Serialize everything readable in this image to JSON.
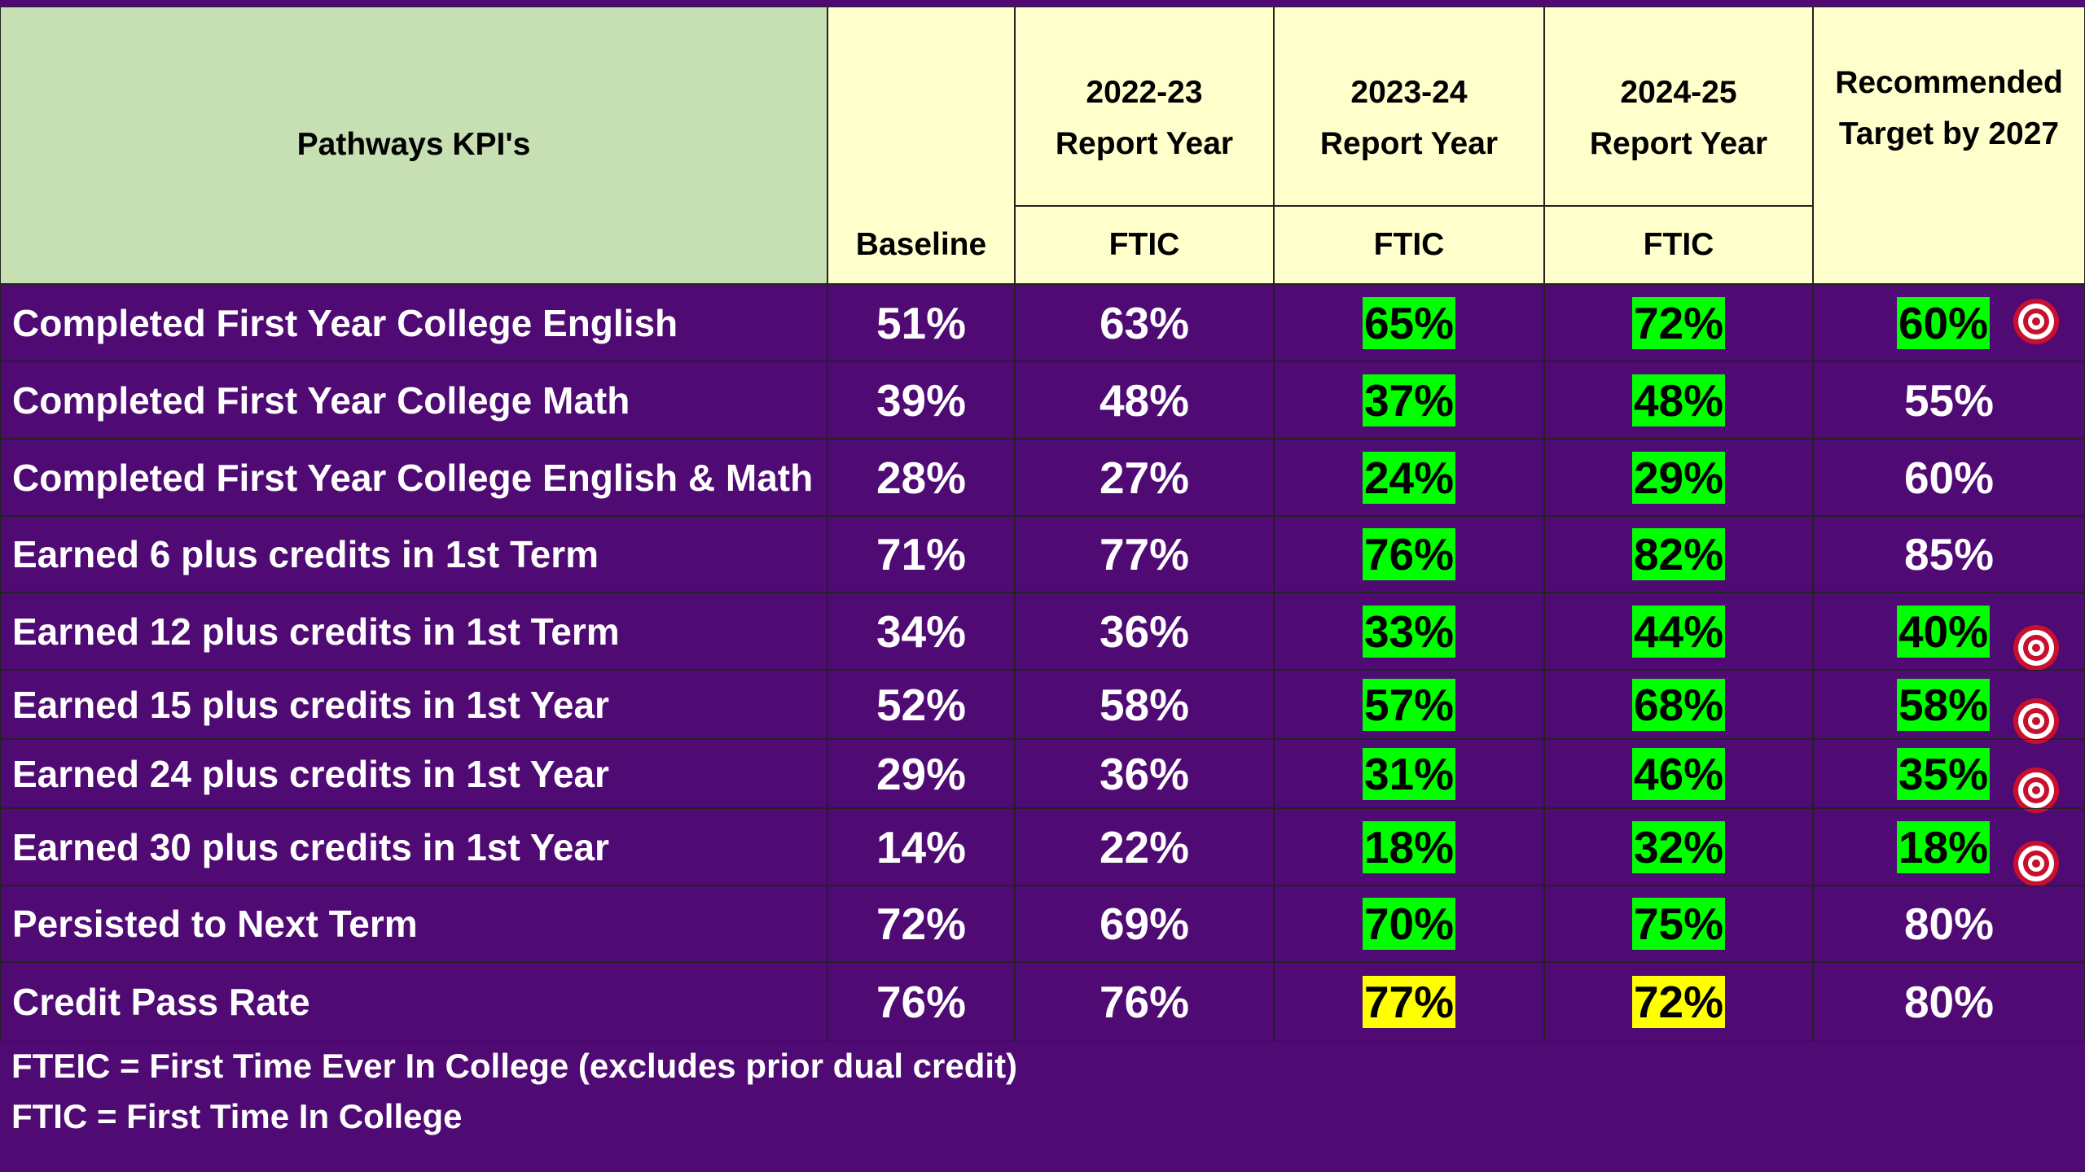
{
  "header": {
    "kpi": "Pathways KPI's",
    "baseline": "Baseline",
    "years": [
      {
        "year": "2022-23",
        "label": "Report Year",
        "sub": "FTIC"
      },
      {
        "year": "2023-24",
        "label": "Report Year",
        "sub": "FTIC"
      },
      {
        "year": "2024-25",
        "label": "Report Year",
        "sub": "FTIC"
      }
    ],
    "target": "Recommended Target by 2027"
  },
  "rows": [
    {
      "label": "Completed First Year College English",
      "values": [
        "51%",
        "63%",
        "65%",
        "72%",
        "60%"
      ],
      "highlight": [
        null,
        null,
        "#00ff00",
        "#00ff00",
        "#00ff00"
      ],
      "target": true
    },
    {
      "label": "Completed First Year College Math",
      "values": [
        "39%",
        "48%",
        "37%",
        "48%",
        "55%"
      ],
      "highlight": [
        null,
        null,
        "#00ff00",
        "#00ff00",
        null
      ],
      "target": false
    },
    {
      "label": "Completed First Year College English & Math",
      "values": [
        "28%",
        "27%",
        "24%",
        "29%",
        "60%"
      ],
      "highlight": [
        null,
        null,
        "#00ff00",
        "#00ff00",
        null
      ],
      "target": false
    },
    {
      "label": "Earned 6 plus credits in 1st Term",
      "values": [
        "71%",
        "77%",
        "76%",
        "82%",
        "85%"
      ],
      "highlight": [
        null,
        null,
        "#00ff00",
        "#00ff00",
        null
      ],
      "target": false
    },
    {
      "label": "Earned 12 plus credits in 1st Term",
      "values": [
        "34%",
        "36%",
        "33%",
        "44%",
        "40%"
      ],
      "highlight": [
        null,
        null,
        "#00ff00",
        "#00ff00",
        "#00ff00"
      ],
      "target": true
    },
    {
      "label": "Earned 15 plus credits in 1st Year",
      "values": [
        "52%",
        "58%",
        "57%",
        "68%",
        "58%"
      ],
      "highlight": [
        null,
        null,
        "#00ff00",
        "#00ff00",
        "#00ff00"
      ],
      "target": true
    },
    {
      "label": "Earned 24 plus credits in 1st Year",
      "values": [
        "29%",
        "36%",
        "31%",
        "46%",
        "35%"
      ],
      "highlight": [
        null,
        null,
        "#00ff00",
        "#00ff00",
        "#00ff00"
      ],
      "target": true
    },
    {
      "label": "Earned 30 plus credits in 1st Year",
      "values": [
        "14%",
        "22%",
        "18%",
        "32%",
        "18%"
      ],
      "highlight": [
        null,
        null,
        "#00ff00",
        "#00ff00",
        "#00ff00"
      ],
      "target": true
    },
    {
      "label": "Persisted to Next Term",
      "values": [
        "72%",
        "69%",
        "70%",
        "75%",
        "80%"
      ],
      "highlight": [
        null,
        null,
        "#00ff00",
        "#00ff00",
        null
      ],
      "target": false
    },
    {
      "label": "Credit Pass Rate",
      "values": [
        "76%",
        "76%",
        "77%",
        "72%",
        "80%"
      ],
      "highlight": [
        null,
        null,
        "#ffff00",
        "#ffff00",
        null
      ],
      "target": false
    }
  ],
  "notes": [
    "FTEIC = First Time Ever In College (excludes prior dual credit)",
    "FTIC = First Time In College"
  ]
}
